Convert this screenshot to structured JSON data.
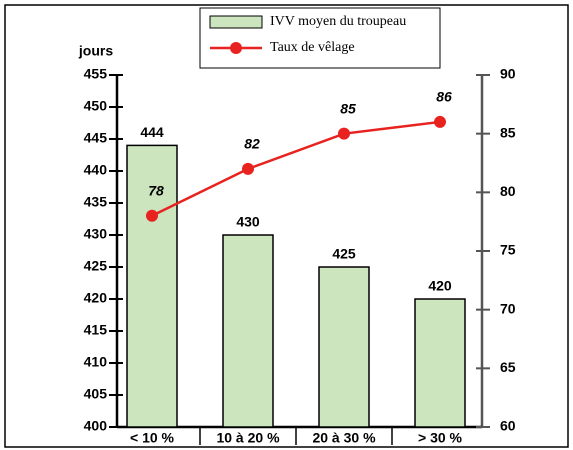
{
  "chart_data": {
    "type": "bar",
    "y_label": "jours",
    "categories": [
      "< 10 %",
      "10 à 20 %",
      "20 à 30 %",
      "> 30 %"
    ],
    "series": [
      {
        "name": "IVV moyen du troupeau",
        "type": "bar",
        "color": "#cce5bf",
        "values": [
          444,
          430,
          425,
          420
        ]
      },
      {
        "name": "Taux de vêlage",
        "type": "line",
        "axis": "y2",
        "color": "#e8231f",
        "values": [
          78,
          82,
          85,
          86
        ]
      }
    ],
    "ylim": [
      400,
      455
    ],
    "yticks": [
      400,
      405,
      410,
      415,
      420,
      425,
      430,
      435,
      440,
      445,
      450,
      455
    ],
    "y2lim": [
      60,
      90
    ],
    "y2ticks": [
      60,
      65,
      70,
      75,
      80,
      85,
      90
    ],
    "legend": "top"
  }
}
